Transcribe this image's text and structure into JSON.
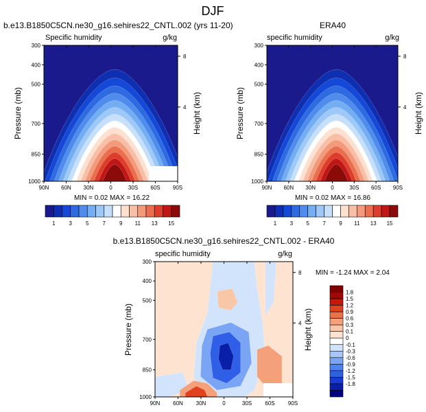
{
  "figure_title": "DJF",
  "colors": {
    "abs_palette": [
      "#1a1a8c",
      "#0f2fb3",
      "#1448d6",
      "#2f6be0",
      "#4f8ceb",
      "#74aef2",
      "#9dc8f7",
      "#c6e0fb",
      "#ffffff",
      "#fde0d0",
      "#f8bfa6",
      "#f29a7a",
      "#ea6f4f",
      "#dd3e2b",
      "#c01616",
      "#8b0a0a"
    ],
    "diff_palette": [
      "#000080",
      "#0a1fa8",
      "#1a3bd1",
      "#2f5fe6",
      "#4f82ef",
      "#7aa4f4",
      "#a8c6f8",
      "#d2e4fb",
      "#ffffff",
      "#fde3d0",
      "#f9c6a8",
      "#f4a07a",
      "#ec7149",
      "#e0421f",
      "#c21a0a",
      "#a00a05",
      "#800000"
    ]
  },
  "chart_data": [
    {
      "type": "heatmap",
      "title": "b.e13.B1850C5CN.ne30_g16.sehires22_CNTL.002 (yrs 11-20)",
      "left_label": "Specific humidity",
      "right_label": "g/kg",
      "ylabel": "Pressure (mb)",
      "ylabel_right": "Height (km)",
      "x_ticks": [
        "90N",
        "60N",
        "30N",
        "0",
        "30S",
        "60S",
        "90S"
      ],
      "y_ticks": [
        "300",
        "400",
        "500",
        "700",
        "850",
        "1000"
      ],
      "y_ticks_right": [
        "8",
        "4"
      ],
      "ylim": [
        1000,
        300
      ],
      "stats": "MIN =  0.02  MAX =  16.22",
      "colorbar_labels": [
        "1",
        "3",
        "5",
        "7",
        "9",
        "11",
        "13",
        "15"
      ],
      "peak": 16.22
    },
    {
      "type": "heatmap",
      "title": "ERA40",
      "left_label": "specific humidity",
      "right_label": "g/kg",
      "ylabel": "Pressure (mb)",
      "ylabel_right": "Height (km)",
      "x_ticks": [
        "90N",
        "60N",
        "30N",
        "0",
        "30S",
        "60S",
        "90S"
      ],
      "y_ticks": [
        "300",
        "400",
        "500",
        "700",
        "850",
        "1000"
      ],
      "y_ticks_right": [
        "8",
        "4"
      ],
      "ylim": [
        1000,
        300
      ],
      "stats": "MIN =  0.02  MAX =  16.86",
      "colorbar_labels": [
        "1",
        "3",
        "5",
        "7",
        "9",
        "11",
        "13",
        "15"
      ],
      "peak": 16.86
    },
    {
      "type": "heatmap",
      "title": "b.e13.B1850C5CN.ne30_g16.sehires22_CNTL.002 - ERA40",
      "left_label": "specific humidity",
      "right_label": "g/kg",
      "ylabel": "Pressure (mb)",
      "ylabel_right": "Height (km)",
      "x_ticks": [
        "90N",
        "60N",
        "30N",
        "0",
        "30S",
        "60S",
        "90S"
      ],
      "y_ticks": [
        "300",
        "400",
        "500",
        "700",
        "850",
        "1000"
      ],
      "y_ticks_right": [
        "8",
        "4"
      ],
      "ylim": [
        1000,
        300
      ],
      "stats": "MIN = -1.24  MAX =  2.04",
      "colorbar_labels": [
        "1.8",
        "1.5",
        "1.2",
        "0.9",
        "0.6",
        "0.3",
        "0.1",
        "0",
        "-0.1",
        "-0.3",
        "-0.6",
        "-0.9",
        "-1.2",
        "-1.5",
        "-1.8"
      ],
      "min": -1.24,
      "max": 2.04
    }
  ]
}
